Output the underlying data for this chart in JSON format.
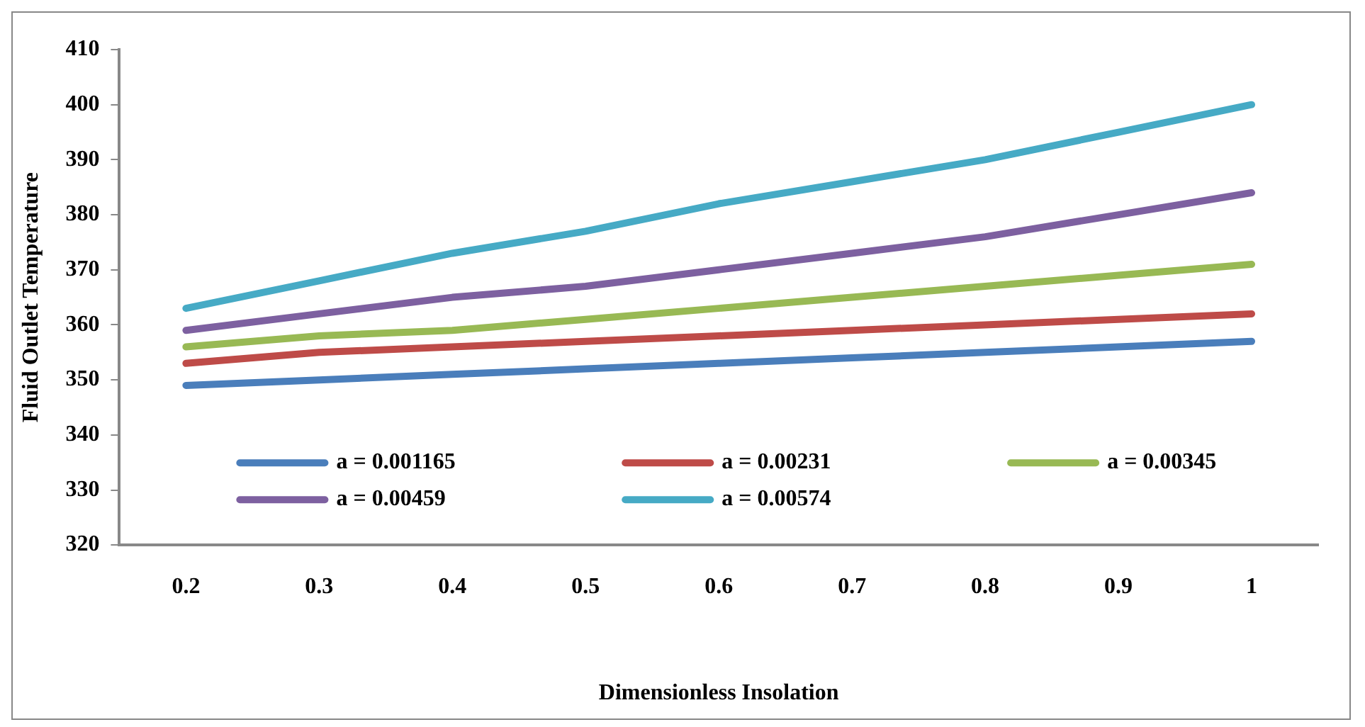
{
  "chart_data": {
    "type": "line",
    "xlabel": "Dimensionless Insolation",
    "ylabel": "Fluid Outlet Temperature",
    "categories": [
      "0.2",
      "0.3",
      "0.4",
      "0.5",
      "0.6",
      "0.7",
      "0.8",
      "0.9",
      "1"
    ],
    "series": [
      {
        "name": "a = 0.001165",
        "color": "#4a7ebb",
        "values": [
          349,
          350,
          351,
          352,
          353,
          354,
          355,
          356,
          357
        ]
      },
      {
        "name": "a = 0.00231",
        "color": "#be4b48",
        "values": [
          353,
          355,
          356,
          357,
          358,
          359,
          360,
          361,
          362
        ]
      },
      {
        "name": "a = 0.00345",
        "color": "#98b954",
        "values": [
          356,
          358,
          359,
          361,
          363,
          365,
          367,
          369,
          371
        ]
      },
      {
        "name": "a = 0.00459",
        "color": "#7d60a0",
        "values": [
          359,
          362,
          365,
          367,
          370,
          373,
          376,
          380,
          384
        ]
      },
      {
        "name": "a = 0.00574",
        "color": "#46aac5",
        "values": [
          363,
          368,
          373,
          377,
          382,
          386,
          390,
          395,
          400
        ]
      }
    ],
    "ylim": [
      320,
      410
    ],
    "yticks": [
      320,
      330,
      340,
      350,
      360,
      370,
      380,
      390,
      400,
      410
    ],
    "grid": false,
    "legend": "bottom",
    "marker": "none",
    "line_style": "solid"
  }
}
